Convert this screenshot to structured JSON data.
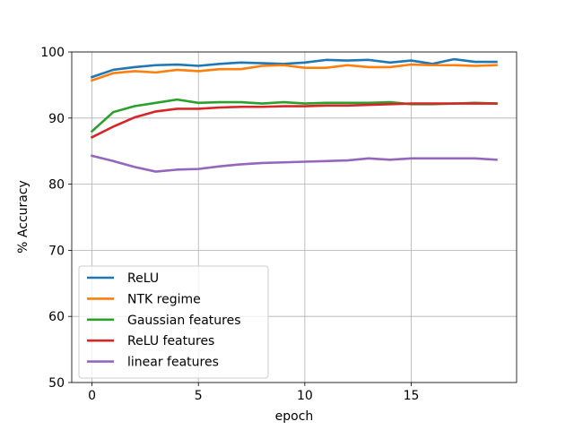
{
  "chart_data": {
    "type": "line",
    "title": "",
    "xlabel": "epoch",
    "ylabel": "% Accuracy",
    "xlim": [
      -0.95,
      19.95
    ],
    "ylim": [
      50,
      100
    ],
    "xticks": [
      0,
      5,
      10,
      15
    ],
    "yticks": [
      50,
      60,
      70,
      80,
      90,
      100
    ],
    "grid": true,
    "legend_position": "lower-left",
    "x": [
      0,
      1,
      2,
      3,
      4,
      5,
      6,
      7,
      8,
      9,
      10,
      11,
      12,
      13,
      14,
      15,
      16,
      17,
      18,
      19
    ],
    "series": [
      {
        "name": "ReLU",
        "color": "#1f77b4",
        "values": [
          96.2,
          97.3,
          97.7,
          98.0,
          98.1,
          97.9,
          98.2,
          98.4,
          98.3,
          98.2,
          98.4,
          98.8,
          98.7,
          98.8,
          98.4,
          98.7,
          98.2,
          98.9,
          98.5,
          98.5
        ]
      },
      {
        "name": "NTK regime",
        "color": "#ff7f0e",
        "values": [
          95.7,
          96.8,
          97.1,
          96.9,
          97.3,
          97.1,
          97.4,
          97.4,
          97.9,
          98.0,
          97.6,
          97.6,
          98.0,
          97.7,
          97.7,
          98.1,
          98.0,
          98.0,
          97.9,
          98.0
        ]
      },
      {
        "name": "Gaussian features",
        "color": "#2ca02c",
        "values": [
          88.0,
          90.9,
          91.8,
          92.3,
          92.8,
          92.3,
          92.4,
          92.4,
          92.2,
          92.4,
          92.2,
          92.3,
          92.3,
          92.3,
          92.4,
          92.1,
          92.1,
          92.2,
          92.3,
          92.2
        ]
      },
      {
        "name": "ReLU features",
        "color": "#d62728",
        "values": [
          87.1,
          88.7,
          90.1,
          91.0,
          91.4,
          91.4,
          91.6,
          91.7,
          91.7,
          91.8,
          91.8,
          91.9,
          91.9,
          92.0,
          92.1,
          92.2,
          92.2,
          92.2,
          92.2,
          92.2
        ]
      },
      {
        "name": "linear features",
        "color": "#9467bd",
        "values": [
          84.3,
          83.5,
          82.6,
          81.9,
          82.2,
          82.3,
          82.7,
          83.0,
          83.2,
          83.3,
          83.4,
          83.5,
          83.6,
          83.9,
          83.7,
          83.9,
          83.9,
          83.9,
          83.9,
          83.7
        ]
      }
    ]
  }
}
